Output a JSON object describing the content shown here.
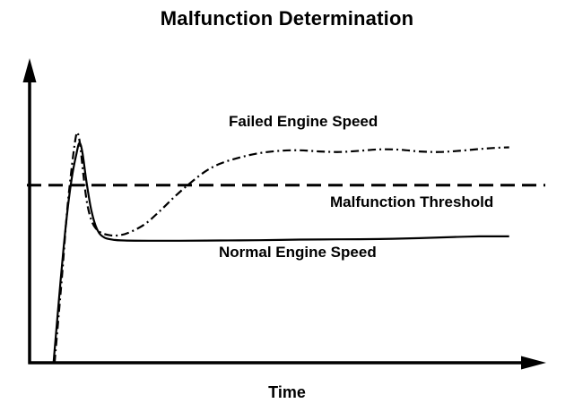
{
  "title": "Malfunction Determination",
  "colors": {
    "line": "#000000",
    "background": "#ffffff"
  },
  "chart_data": {
    "type": "line",
    "title": "Malfunction Determination",
    "xlabel": "Time",
    "ylabel": "",
    "x_range": [
      0,
      100
    ],
    "y_range": [
      0,
      100
    ],
    "grid": false,
    "legend_position": "inline-annotations",
    "threshold": {
      "label": "Malfunction Threshold",
      "y": 61,
      "line_style": "dashed",
      "color": "#000000"
    },
    "series": [
      {
        "name": "Failed Engine Speed",
        "line_style": "dash-dot",
        "color": "#000000",
        "points": [
          [
            5,
            0
          ],
          [
            6.5,
            30
          ],
          [
            7.5,
            52
          ],
          [
            8.5,
            68
          ],
          [
            9.2,
            77
          ],
          [
            9.6,
            79
          ],
          [
            10.1,
            75
          ],
          [
            10.8,
            64
          ],
          [
            11.6,
            54
          ],
          [
            12.6,
            48
          ],
          [
            14,
            45
          ],
          [
            16,
            43.8
          ],
          [
            18,
            43.8
          ],
          [
            20,
            44.8
          ],
          [
            23,
            47.5
          ],
          [
            26,
            52
          ],
          [
            29,
            57
          ],
          [
            32,
            61.5
          ],
          [
            35,
            65.5
          ],
          [
            38,
            68.3
          ],
          [
            42,
            70.5
          ],
          [
            46,
            72
          ],
          [
            50,
            72.8
          ],
          [
            54,
            73
          ],
          [
            58,
            72.6
          ],
          [
            62,
            72.4
          ],
          [
            66,
            72.8
          ],
          [
            70,
            73.3
          ],
          [
            74,
            73.2
          ],
          [
            78,
            72.6
          ],
          [
            82,
            72.4
          ],
          [
            86,
            72.8
          ],
          [
            90,
            73.4
          ],
          [
            93,
            73.8
          ],
          [
            96,
            74
          ]
        ]
      },
      {
        "name": "Normal Engine Speed",
        "line_style": "solid",
        "color": "#000000",
        "points": [
          [
            4.8,
            0
          ],
          [
            6.2,
            28
          ],
          [
            7.3,
            48
          ],
          [
            8.4,
            63
          ],
          [
            9.4,
            72
          ],
          [
            10,
            75.5
          ],
          [
            10.6,
            72
          ],
          [
            11.4,
            62
          ],
          [
            12.4,
            52
          ],
          [
            13.6,
            45.5
          ],
          [
            15,
            43
          ],
          [
            17,
            42.2
          ],
          [
            19,
            42
          ],
          [
            24,
            41.9
          ],
          [
            30,
            41.9
          ],
          [
            38,
            42
          ],
          [
            46,
            42.1
          ],
          [
            54,
            42.3
          ],
          [
            62,
            42.4
          ],
          [
            70,
            42.5
          ],
          [
            78,
            42.8
          ],
          [
            85,
            43.2
          ],
          [
            90,
            43.4
          ],
          [
            96,
            43.4
          ]
        ]
      }
    ]
  }
}
